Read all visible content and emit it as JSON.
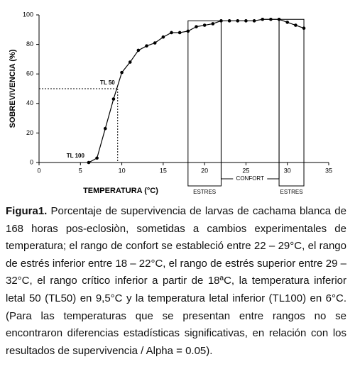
{
  "chart_data": {
    "type": "line",
    "x_label": "TEMPERATURA (°C)",
    "y_label": "SOBREVIVENCIA (%)",
    "x": [
      6,
      7,
      8,
      9,
      10,
      11,
      12,
      13,
      14,
      15,
      16,
      17,
      18,
      19,
      20,
      21,
      22,
      23,
      24,
      25,
      26,
      27,
      28,
      29,
      30,
      31,
      32
    ],
    "series": [
      {
        "color": "#000000",
        "values": [
          0,
          3,
          23,
          43,
          61,
          68,
          76,
          79,
          81,
          85,
          88,
          88,
          89,
          92,
          93,
          94,
          96,
          96,
          96,
          96,
          96,
          97,
          97,
          97,
          95,
          93,
          91
        ]
      }
    ],
    "xlim": [
      0,
      35
    ],
    "xticks": [
      0,
      5,
      10,
      15,
      20,
      25,
      30,
      35
    ],
    "ylim": [
      0,
      100
    ],
    "yticks": [
      0,
      20,
      40,
      60,
      80,
      100
    ],
    "annotations": [
      {
        "text": "TL 50",
        "x": 9.5,
        "y": 50
      },
      {
        "text": "TL 100",
        "x": 6,
        "y": 0
      }
    ],
    "zones": [
      {
        "label": "ESTRES",
        "from": 18,
        "to": 22
      },
      {
        "label": "CONFORT",
        "from": 22,
        "to": 29
      },
      {
        "label": "ESTRES",
        "from": 29,
        "to": 32
      }
    ]
  },
  "caption": {
    "label": "Figura1.",
    "text": "Porcentaje de supervivencia de larvas de cachama blanca de 168 horas pos-eclosiòn, sometidas a cambios experimentales de temperatura; el rango de confort se estableció entre 22 – 29°C, el rango de estrés inferior entre 18 – 22°C, el rango de estrés superior entre 29 – 32°C, el rango crítico inferior a partir de 18ªC, la temperatura inferior letal 50 (TL50) en 9,5°C y la temperatura letal inferior (TL100) en 6°C. (Para las temperaturas que se presentan entre rangos no se encontraron diferencias estadísticas significativas, en relación con los resultados de supervivencia / Alpha = 0.05)."
  }
}
